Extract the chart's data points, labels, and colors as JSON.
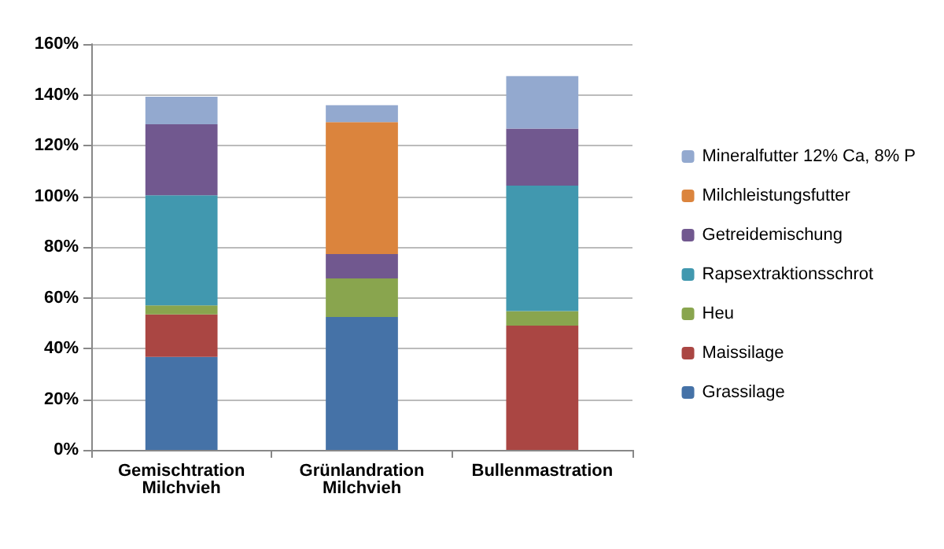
{
  "chart_data": {
    "type": "bar",
    "stacked": true,
    "categories": [
      "Gemischtration\nMilchvieh",
      "Grünlandration\nMilchvieh",
      "Bullenmastration"
    ],
    "series": [
      {
        "name": "Grassilage",
        "color": "#4572a7",
        "values": [
          36.7,
          52.4,
          null
        ]
      },
      {
        "name": "Maissilage",
        "color": "#aa4643",
        "values": [
          16.7,
          null,
          49
        ]
      },
      {
        "name": "Heu",
        "color": "#89a54e",
        "values": [
          3.6,
          15.2,
          5.7
        ]
      },
      {
        "name": "Rapsextraktionsschrot",
        "color": "#4198af",
        "values": [
          43.4,
          null,
          49.5
        ]
      },
      {
        "name": "Getreidemischung",
        "color": "#71588f",
        "values": [
          28,
          9.6,
          22.5
        ]
      },
      {
        "name": "Milchleistungsfutter",
        "color": "#db843d",
        "values": [
          null,
          52,
          null
        ]
      },
      {
        "name": "Mineralfutter 12% Ca, 8% P",
        "color": "#93a9cf",
        "values": [
          10.8,
          6.7,
          20.7
        ]
      }
    ],
    "ylim": [
      0,
      160
    ],
    "yticks": [
      {
        "value": 0,
        "label": "0%"
      },
      {
        "value": 20,
        "label": "20%"
      },
      {
        "value": 40,
        "label": "40%"
      },
      {
        "value": 60,
        "label": "60%"
      },
      {
        "value": 80,
        "label": "80%"
      },
      {
        "value": 100,
        "label": "100%"
      },
      {
        "value": 120,
        "label": "120%"
      },
      {
        "value": 140,
        "label": "140%"
      },
      {
        "value": 160,
        "label": "160%"
      }
    ],
    "grid": "y",
    "legend": "right"
  }
}
